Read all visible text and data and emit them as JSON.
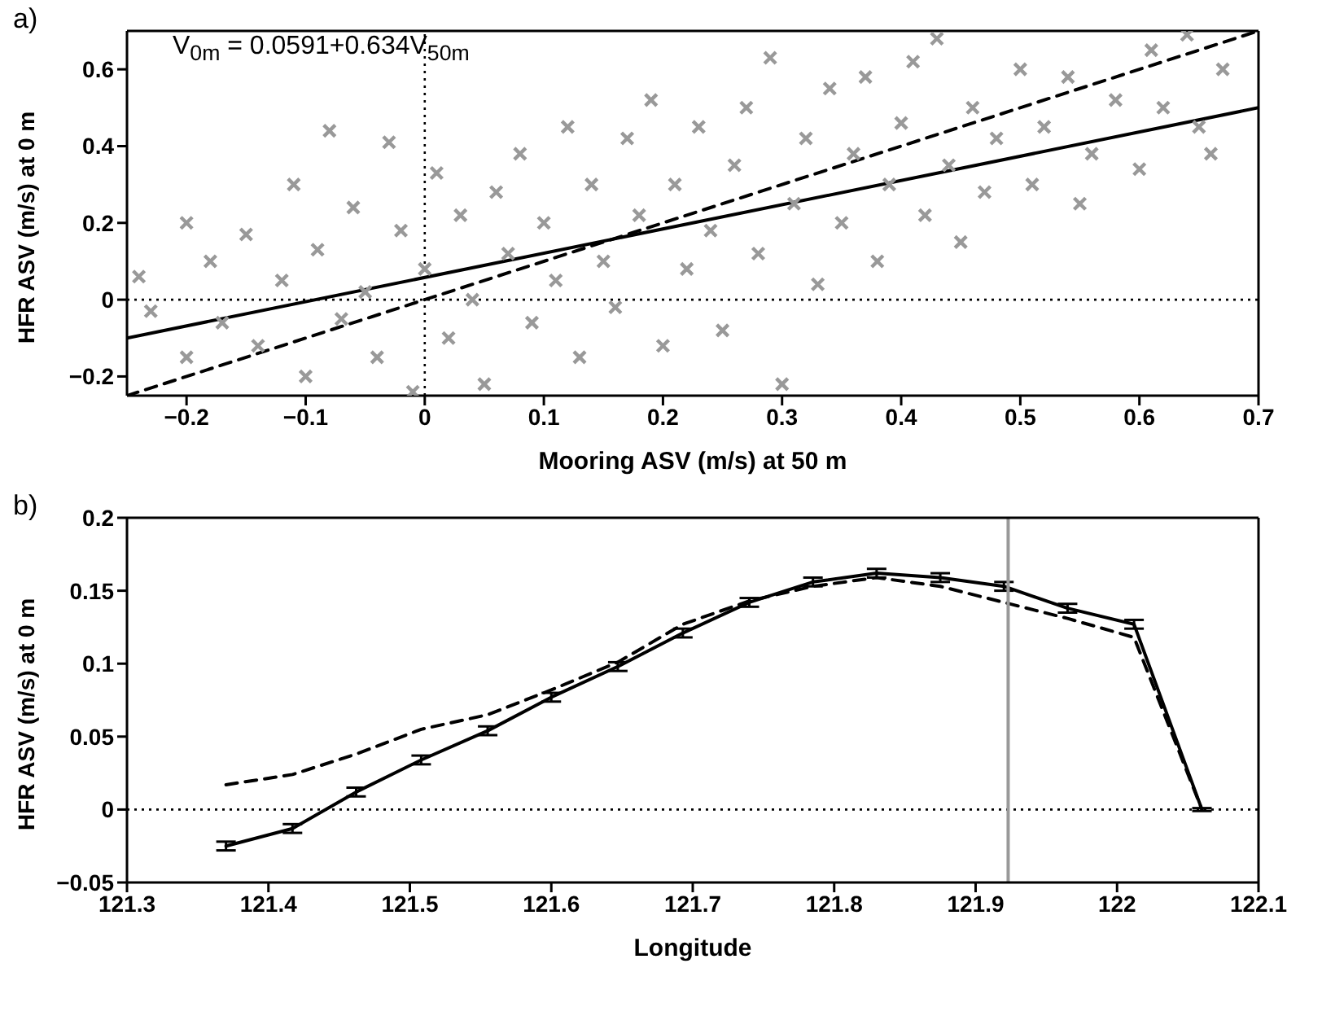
{
  "chart_data": [
    {
      "type": "scatter",
      "xlabel": "Mooring ASV (m/s) at 50 m",
      "ylabel": "HFR ASV (m/s) at 0 m",
      "annotations": [
        "a)",
        "V$_{0m}$ = 0.0591+0.634V$_{50m}$"
      ],
      "xlim": [
        -0.25,
        0.7
      ],
      "ylim": [
        -0.25,
        0.7
      ],
      "xticks": [
        {
          "value": -0.2,
          "label": "−0.2"
        },
        {
          "value": -0.1,
          "label": "−0.1"
        },
        0,
        0.1,
        0.2,
        0.3,
        0.4,
        0.5,
        0.6,
        0.7
      ],
      "yticks": [
        {
          "value": -0.2,
          "label": "−0.2"
        },
        0,
        0.2,
        0.4,
        0.6
      ],
      "ref_lines": [
        {
          "axis": "x",
          "value": 0,
          "color": "#000000",
          "line_style": "dotted"
        },
        {
          "axis": "y",
          "value": 0,
          "color": "#000000",
          "line_style": "dotted"
        }
      ],
      "series": [
        {
          "marker": "cross",
          "color": "#999999",
          "x": [
            -0.24,
            -0.23,
            -0.2,
            -0.2,
            -0.18,
            -0.17,
            -0.15,
            -0.14,
            -0.12,
            -0.11,
            -0.1,
            -0.09,
            -0.08,
            -0.07,
            -0.06,
            -0.05,
            -0.04,
            -0.03,
            -0.02,
            -0.01,
            0,
            0.01,
            0.02,
            0.03,
            0.04,
            0.05,
            0.06,
            0.07,
            0.08,
            0.09,
            0.1,
            0.11,
            0.12,
            0.13,
            0.14,
            0.15,
            0.16,
            0.17,
            0.18,
            0.19,
            0.2,
            0.21,
            0.22,
            0.23,
            0.24,
            0.25,
            0.26,
            0.27,
            0.28,
            0.29,
            0.3,
            0.31,
            0.32,
            0.33,
            0.34,
            0.35,
            0.36,
            0.37,
            0.38,
            0.39,
            0.4,
            0.41,
            0.42,
            0.43,
            0.44,
            0.45,
            0.46,
            0.47,
            0.48,
            0.5,
            0.51,
            0.52,
            0.54,
            0.55,
            0.56,
            0.58,
            0.6,
            0.61,
            0.62,
            0.64,
            0.65,
            0.66,
            0.67
          ],
          "values": [
            0.06,
            -0.03,
            0.2,
            -0.15,
            0.1,
            -0.06,
            0.17,
            -0.12,
            0.05,
            0.3,
            -0.2,
            0.13,
            0.44,
            -0.05,
            0.24,
            0.02,
            -0.15,
            0.41,
            0.18,
            -0.24,
            0.08,
            0.33,
            -0.1,
            0.22,
            0,
            -0.22,
            0.28,
            0.12,
            0.38,
            -0.06,
            0.2,
            0.05,
            0.45,
            -0.15,
            0.3,
            0.1,
            -0.02,
            0.42,
            0.22,
            0.52,
            -0.12,
            0.3,
            0.08,
            0.45,
            0.18,
            -0.08,
            0.35,
            0.5,
            0.12,
            0.63,
            -0.22,
            0.25,
            0.42,
            0.04,
            0.55,
            0.2,
            0.38,
            0.58,
            0.1,
            0.3,
            0.46,
            0.62,
            0.22,
            0.68,
            0.35,
            0.15,
            0.5,
            0.28,
            0.42,
            0.6,
            0.3,
            0.45,
            0.58,
            0.25,
            0.38,
            0.52,
            0.34,
            0.65,
            0.5,
            0.69,
            0.45,
            0.38,
            0.6
          ]
        },
        {
          "type": "line",
          "marker": "none",
          "line_style": "solid",
          "color": "#000000",
          "x": [
            -0.25,
            0.7
          ],
          "values": [
            -0.1,
            0.5
          ]
        },
        {
          "type": "line",
          "marker": "none",
          "line_style": "dashed",
          "color": "#000000",
          "x": [
            -0.25,
            0.7
          ],
          "values": [
            -0.25,
            0.7
          ]
        }
      ]
    },
    {
      "type": "line",
      "xlabel": "Longitude",
      "ylabel": "HFR ASV (m/s) at 0 m",
      "annotations": [
        "b)"
      ],
      "xlim": [
        121.3,
        122.1
      ],
      "ylim": [
        -0.05,
        0.2
      ],
      "xticks": [
        121.3,
        121.4,
        121.5,
        121.6,
        121.7,
        121.8,
        121.9,
        122,
        122.1
      ],
      "yticks": [
        {
          "value": -0.05,
          "label": "−0.05"
        },
        0,
        0.05,
        0.1,
        0.15,
        0.2
      ],
      "ref_lines": [
        {
          "axis": "y",
          "value": 0,
          "color": "#000000",
          "line_style": "dotted"
        },
        {
          "axis": "x",
          "value": 121.923,
          "color": "#999999",
          "line_style": "solid"
        }
      ],
      "series": [
        {
          "marker": "none",
          "line_style": "solid",
          "color": "#000000",
          "x": [
            121.37,
            121.417,
            121.462,
            121.508,
            121.555,
            121.6,
            121.647,
            121.693,
            121.74,
            121.785,
            121.83,
            121.875,
            121.92,
            121.965,
            122.012,
            122.06
          ],
          "values": [
            -0.025,
            -0.013,
            0.012,
            0.034,
            0.054,
            0.077,
            0.098,
            0.121,
            0.142,
            0.156,
            0.162,
            0.159,
            0.153,
            0.138,
            0.127,
            0
          ],
          "errors": [
            0.003,
            0.003,
            0.003,
            0.003,
            0.003,
            0.003,
            0.003,
            0.003,
            0.003,
            0.003,
            0.003,
            0.003,
            0.003,
            0.003,
            0.003,
            0.001
          ]
        },
        {
          "marker": "none",
          "line_style": "dashed",
          "color": "#000000",
          "x": [
            121.37,
            121.417,
            121.462,
            121.508,
            121.555,
            121.6,
            121.647,
            121.693,
            121.74,
            121.785,
            121.83,
            121.875,
            121.92,
            121.965,
            122.012,
            122.06
          ],
          "values": [
            0.017,
            0.024,
            0.038,
            0.055,
            0.065,
            0.082,
            0.101,
            0.127,
            0.143,
            0.153,
            0.159,
            0.153,
            0.142,
            0.131,
            0.118,
            0
          ]
        }
      ]
    }
  ]
}
